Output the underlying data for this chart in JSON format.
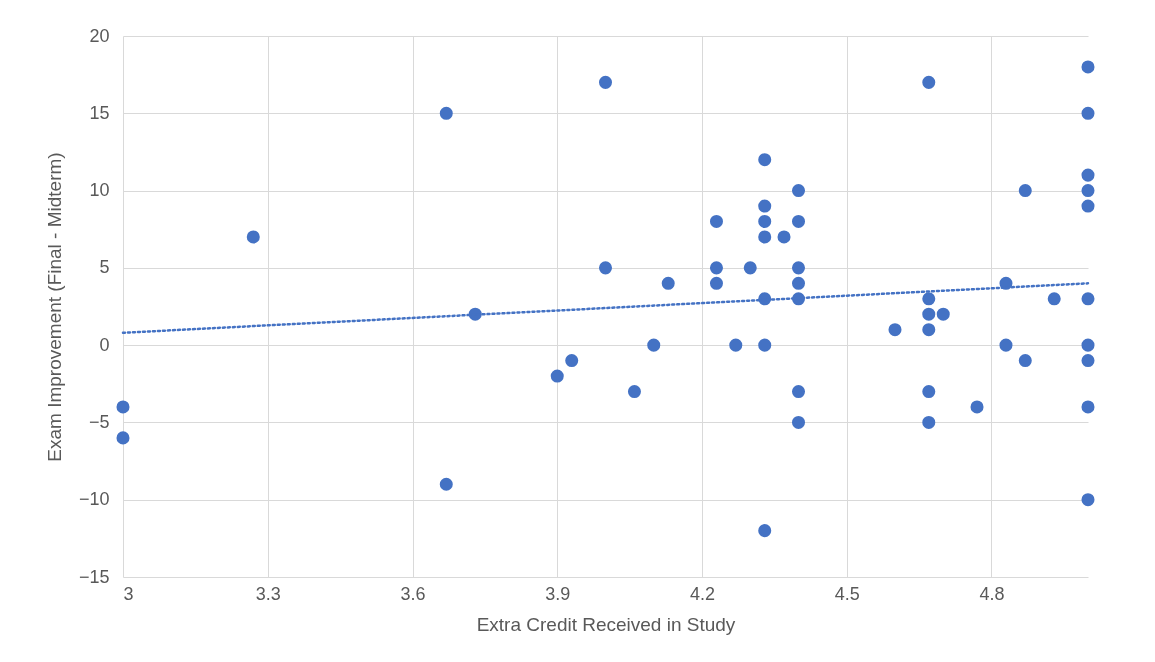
{
  "chart_data": {
    "type": "scatter",
    "xlabel": "Extra Credit Received in Study",
    "ylabel": "Exam Improvement (Final - Midterm)",
    "xlim": [
      3,
      5
    ],
    "ylim": [
      -15,
      20
    ],
    "xticks": [
      3,
      3.3,
      3.6,
      3.9,
      4.2,
      4.5,
      4.8
    ],
    "yticks": [
      -15,
      -10,
      -5,
      0,
      5,
      10,
      15,
      20
    ],
    "grid": true,
    "marker": "circle",
    "series": [
      {
        "color": "#4472c4",
        "x": [
          3,
          3,
          3.27,
          3.67,
          3.67,
          3.73,
          3.9,
          3.93,
          4.0,
          4.0,
          4.06,
          4.1,
          4.13,
          4.23,
          4.23,
          4.23,
          4.27,
          4.3,
          4.33,
          4.33,
          4.33,
          4.33,
          4.33,
          4.33,
          4.33,
          4.37,
          4.4,
          4.4,
          4.4,
          4.4,
          4.4,
          4.4,
          4.4,
          4.6,
          4.67,
          4.67,
          4.67,
          4.67,
          4.67,
          4.67,
          4.7,
          4.77,
          4.83,
          4.83,
          4.87,
          4.87,
          4.93,
          5,
          5,
          5,
          5,
          5,
          5,
          5,
          5,
          5,
          5
        ],
        "values": [
          -4,
          -6,
          7,
          15,
          -9,
          2,
          -2,
          -1,
          17,
          5,
          -3,
          0,
          4,
          8,
          5,
          4,
          0,
          5,
          12,
          9,
          8,
          7,
          3,
          0,
          -12,
          7,
          10,
          8,
          5,
          4,
          3,
          -3,
          -5,
          1,
          17,
          3,
          2,
          1,
          -3,
          -5,
          2,
          -4,
          4,
          0,
          10,
          -1,
          3,
          18,
          15,
          11,
          10,
          9,
          3,
          0,
          -1,
          -4,
          -10
        ]
      },
      {
        "type": "line",
        "color": "#4472c4",
        "marker": "none",
        "line_style": "dotted",
        "x": [
          3,
          5
        ],
        "values": [
          0.8,
          4.0
        ]
      }
    ]
  }
}
